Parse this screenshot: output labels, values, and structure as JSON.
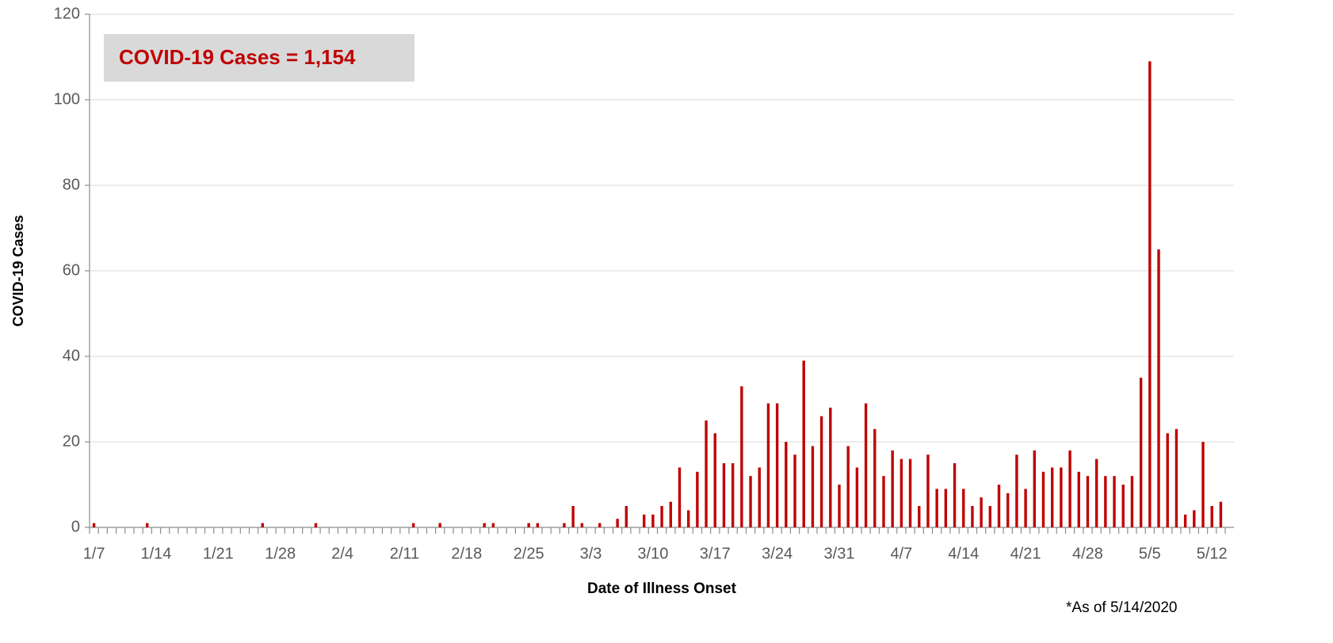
{
  "chart_data": {
    "type": "bar",
    "annotation": "COVID-19 Cases = 1,154",
    "y_label": "COVID-19 Cases",
    "x_label": "Date of Illness Onset",
    "footnote": "*As of 5/14/2020",
    "color": "#c00000",
    "grid": true,
    "ylim": [
      0,
      120
    ],
    "yticks": [
      0,
      20,
      40,
      60,
      80,
      100,
      120
    ],
    "categories": [
      "1/7",
      null,
      null,
      null,
      null,
      null,
      null,
      "1/14",
      null,
      null,
      null,
      null,
      null,
      null,
      "1/21",
      null,
      null,
      null,
      null,
      null,
      null,
      "1/28",
      null,
      null,
      null,
      null,
      null,
      null,
      "2/4",
      null,
      null,
      null,
      null,
      null,
      null,
      "2/11",
      null,
      null,
      null,
      null,
      null,
      null,
      "2/18",
      null,
      null,
      null,
      null,
      null,
      null,
      "2/25",
      null,
      null,
      null,
      null,
      null,
      null,
      "3/3",
      null,
      null,
      null,
      null,
      null,
      null,
      "3/10",
      null,
      null,
      null,
      null,
      null,
      null,
      "3/17",
      null,
      null,
      null,
      null,
      null,
      null,
      "3/24",
      null,
      null,
      null,
      null,
      null,
      null,
      "3/31",
      null,
      null,
      null,
      null,
      null,
      null,
      "4/7",
      null,
      null,
      null,
      null,
      null,
      null,
      "4/14",
      null,
      null,
      null,
      null,
      null,
      null,
      "4/21",
      null,
      null,
      null,
      null,
      null,
      null,
      "4/28",
      null,
      null,
      null,
      null,
      null,
      null,
      "5/5",
      null,
      null,
      null,
      null,
      null,
      null,
      "5/12",
      null
    ],
    "values": [
      1,
      0,
      0,
      0,
      0,
      0,
      1,
      0,
      0,
      0,
      0,
      0,
      0,
      0,
      0,
      0,
      0,
      0,
      0,
      1,
      0,
      0,
      0,
      0,
      0,
      1,
      0,
      0,
      0,
      0,
      0,
      0,
      0,
      0,
      0,
      0,
      1,
      0,
      0,
      1,
      0,
      0,
      0,
      0,
      1,
      1,
      0,
      0,
      0,
      1,
      1,
      0,
      0,
      1,
      5,
      1,
      0,
      1,
      0,
      2,
      5,
      0,
      3,
      3,
      5,
      6,
      14,
      4,
      13,
      25,
      22,
      15,
      15,
      33,
      12,
      14,
      29,
      29,
      20,
      17,
      39,
      19,
      26,
      28,
      10,
      19,
      14,
      29,
      23,
      12,
      18,
      16,
      16,
      5,
      17,
      9,
      9,
      15,
      9,
      5,
      7,
      5,
      10,
      8,
      17,
      9,
      18,
      13,
      14,
      14,
      18,
      13,
      12,
      16,
      12,
      12,
      10,
      12,
      35,
      109,
      65,
      22,
      23,
      3,
      4,
      20,
      5,
      6
    ]
  }
}
